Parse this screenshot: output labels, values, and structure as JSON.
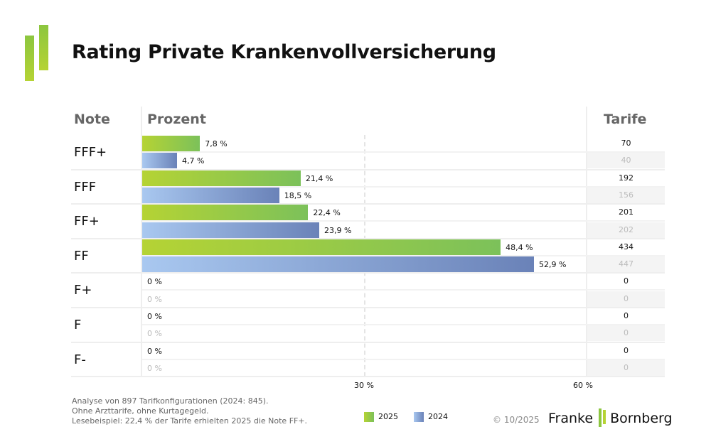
{
  "title": "Rating Private Krankenvollversicherung",
  "headers": {
    "note": "Note",
    "prozent": "Prozent",
    "tarife": "Tarife"
  },
  "colors": {
    "2025": "#8cc63f",
    "2024": "#7b92c6"
  },
  "chart_data": {
    "type": "bar",
    "orientation": "horizontal",
    "categories": [
      "FFF+",
      "FFF",
      "FF+",
      "FF",
      "F+",
      "F",
      "F-"
    ],
    "series": [
      {
        "name": "2025",
        "values": [
          7.8,
          21.4,
          22.4,
          48.4,
          0,
          0,
          0
        ],
        "labels": [
          "7,8 %",
          "21,4 %",
          "22,4 %",
          "48,4 %",
          "0 %",
          "0 %",
          "0 %"
        ],
        "tarife": [
          "70",
          "192",
          "201",
          "434",
          "0",
          "0",
          "0"
        ]
      },
      {
        "name": "2024",
        "values": [
          4.7,
          18.5,
          23.9,
          52.9,
          0,
          0,
          0
        ],
        "labels": [
          "4,7 %",
          "18,5 %",
          "23,9 %",
          "52,9 %",
          "0 %",
          "0 %",
          "0 %"
        ],
        "tarife": [
          "40",
          "156",
          "202",
          "447",
          "0",
          "0",
          "0"
        ]
      }
    ],
    "xlim": [
      0,
      60
    ],
    "xticks": [
      "30 %",
      "60 %"
    ],
    "grid": "dashed at 30 %",
    "legend": "bottom-center"
  },
  "footer": {
    "line1": "Analyse von 897 Tarifkonfigurationen (2024: 845).",
    "line2": "Ohne Arzttarife, ohne Kurtagegeld.",
    "line3": "Lesebeispiel: 22,4 % der Tarife erhielten 2025 die Note FF+.",
    "copyright": "© 10/2025",
    "brand": "Franke Bornberg"
  }
}
